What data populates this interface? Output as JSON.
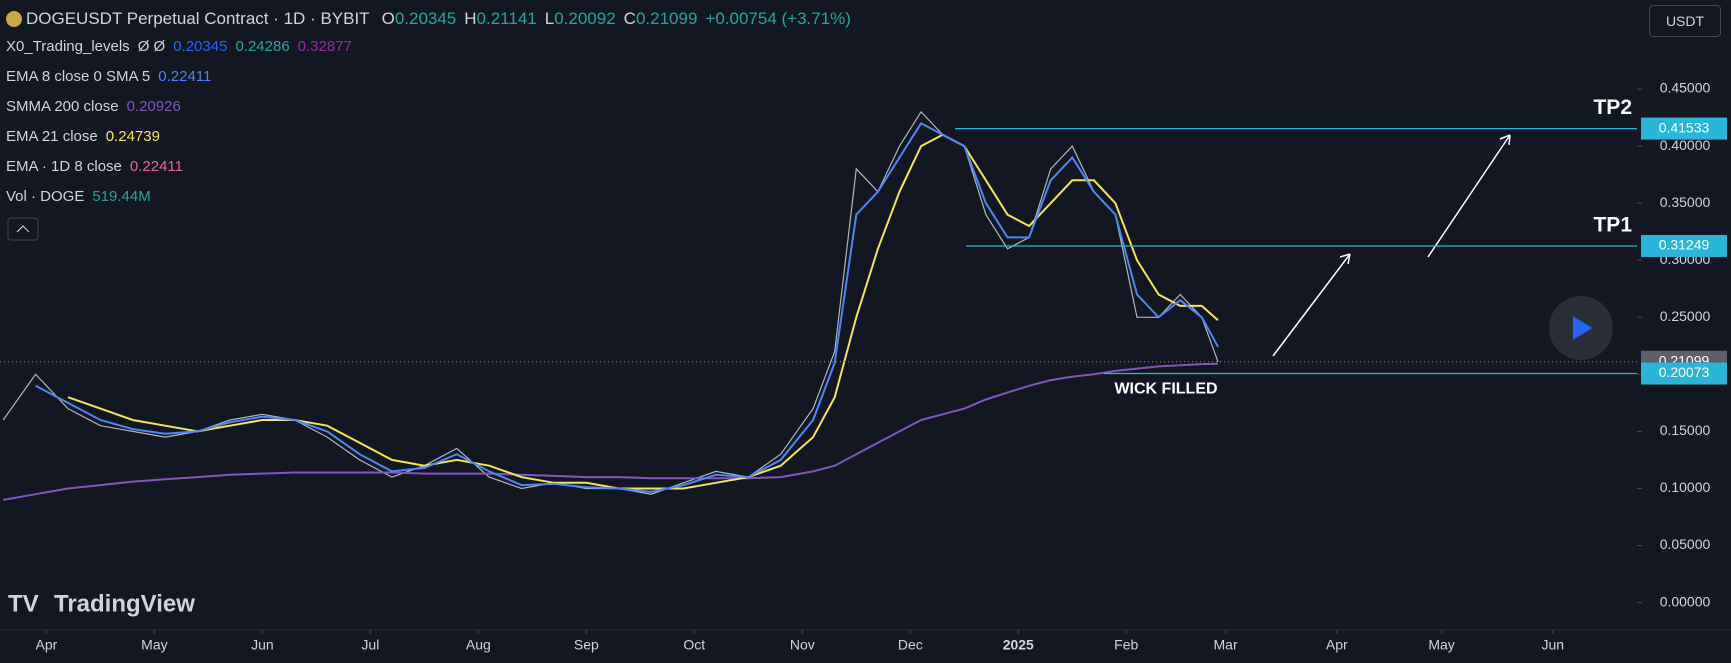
{
  "chart_data": {
    "type": "line",
    "title": "DOGEUSDT Perpetual Contract · 1D · BYBIT",
    "ohlc": [
      {
        "label": "O",
        "value": 0.20345
      },
      {
        "label": "H",
        "value": 0.21141
      },
      {
        "label": "L",
        "value": 0.20092
      },
      {
        "label": "C",
        "value": 0.21099
      }
    ],
    "change": "+0.00754 (+3.71%)",
    "currency": "USDT",
    "brand": "TradingView",
    "indicators": [
      {
        "name": "X0_Trading_levels",
        "extra": "Ø Ø",
        "values": [
          0.20345,
          0.24286,
          0.32877
        ],
        "colors": [
          "#2962ff",
          "#26a69a",
          "#9c27b0"
        ]
      },
      {
        "name": "EMA 8 close 0 SMA 5",
        "values": [
          0.22411
        ],
        "colors": [
          "#4f86f7"
        ]
      },
      {
        "name": "SMMA 200 close",
        "values": [
          0.20926
        ],
        "colors": [
          "#7e57c2"
        ]
      },
      {
        "name": "EMA 21 close",
        "values": [
          0.24739
        ],
        "colors": [
          "#f5e35b"
        ]
      },
      {
        "name": "EMA · 1D 8 close",
        "values": [
          0.22411
        ],
        "colors": [
          "#f06292"
        ]
      },
      {
        "name": "Vol · DOGE",
        "values": [
          "519.44M"
        ],
        "colors": [
          "#26a69a"
        ]
      }
    ],
    "x": [
      -0.4,
      -0.1,
      0.2,
      0.5,
      0.8,
      1.1,
      1.4,
      1.7,
      2,
      2.3,
      2.6,
      2.9,
      3.2,
      3.5,
      3.8,
      4.1,
      4.4,
      4.7,
      5,
      5.3,
      5.6,
      5.9,
      6.2,
      6.5,
      6.8,
      7.1,
      7.3,
      7.5,
      7.7,
      7.9,
      8.1,
      8.3,
      8.5,
      8.7,
      8.9,
      9.1,
      9.3,
      9.5,
      9.7,
      9.9,
      10.1,
      10.3,
      10.5,
      10.7,
      10.85
    ],
    "price": {
      "color": "#b2b5be",
      "values": [
        0.16,
        0.2,
        0.17,
        0.155,
        0.15,
        0.145,
        0.15,
        0.16,
        0.165,
        0.16,
        0.145,
        0.125,
        0.11,
        0.12,
        0.135,
        0.11,
        0.1,
        0.105,
        0.1,
        0.1,
        0.095,
        0.105,
        0.115,
        0.11,
        0.13,
        0.17,
        0.22,
        0.38,
        0.36,
        0.4,
        0.43,
        0.41,
        0.4,
        0.34,
        0.31,
        0.32,
        0.38,
        0.4,
        0.36,
        0.34,
        0.25,
        0.25,
        0.27,
        0.25,
        0.21099
      ]
    },
    "series": [
      {
        "name": "SMMA 200 close",
        "color": "#7e57c2",
        "values": [
          0.09,
          0.095,
          0.1,
          0.103,
          0.106,
          0.108,
          0.11,
          0.112,
          0.113,
          0.114,
          0.114,
          0.114,
          0.114,
          0.113,
          0.113,
          0.113,
          0.112,
          0.111,
          0.11,
          0.11,
          0.109,
          0.109,
          0.109,
          0.109,
          0.11,
          0.115,
          0.12,
          0.13,
          0.14,
          0.15,
          0.16,
          0.165,
          0.17,
          0.178,
          0.184,
          0.19,
          0.195,
          0.198,
          0.2,
          0.203,
          0.205,
          0.207,
          0.208,
          0.209,
          0.20926
        ]
      },
      {
        "name": "EMA 21 close",
        "color": "#f5e35b",
        "values": [
          null,
          null,
          0.18,
          0.17,
          0.16,
          0.155,
          0.15,
          0.155,
          0.16,
          0.16,
          0.155,
          0.14,
          0.125,
          0.12,
          0.125,
          0.12,
          0.11,
          0.105,
          0.105,
          0.1,
          0.1,
          0.1,
          0.105,
          0.11,
          0.12,
          0.145,
          0.18,
          0.25,
          0.31,
          0.36,
          0.4,
          0.41,
          0.4,
          0.37,
          0.34,
          0.33,
          0.35,
          0.37,
          0.37,
          0.35,
          0.3,
          0.27,
          0.26,
          0.26,
          0.24739
        ]
      },
      {
        "name": "EMA 8 close 0 SMA 5",
        "color": "#4f86f7",
        "values": [
          null,
          0.19,
          0.175,
          0.16,
          0.152,
          0.148,
          0.15,
          0.158,
          0.163,
          0.16,
          0.15,
          0.13,
          0.115,
          0.118,
          0.13,
          0.115,
          0.103,
          0.104,
          0.101,
          0.1,
          0.097,
          0.103,
          0.112,
          0.11,
          0.125,
          0.16,
          0.21,
          0.34,
          0.36,
          0.39,
          0.42,
          0.41,
          0.4,
          0.35,
          0.32,
          0.32,
          0.37,
          0.39,
          0.36,
          0.34,
          0.27,
          0.25,
          0.265,
          0.25,
          0.22411
        ]
      }
    ],
    "levels": [
      {
        "value": 0.41533,
        "label": "TP2",
        "color": "#29b6d8"
      },
      {
        "value": 0.31249,
        "label": "TP1",
        "color": "#29b6d8"
      },
      {
        "value": 0.20073,
        "label": "WICK FILLED",
        "color": "#29b6d8"
      }
    ],
    "xlim": [
      -0.43,
      14.73
    ],
    "ylim": [
      -0.024,
      0.528
    ],
    "yticks": [
      {
        "value": 0,
        "label": "0.00000"
      },
      {
        "value": 0.05,
        "label": "0.05000"
      },
      {
        "value": 0.1,
        "label": "0.10000"
      },
      {
        "value": 0.15,
        "label": "0.15000"
      },
      {
        "value": 0.2,
        "label": "0.20000"
      },
      {
        "value": 0.25,
        "label": "0.25000"
      },
      {
        "value": 0.3,
        "label": "0.30000"
      },
      {
        "value": 0.35,
        "label": "0.35000"
      },
      {
        "value": 0.4,
        "label": "0.40000"
      },
      {
        "value": 0.45,
        "label": "0.45000"
      }
    ],
    "xticks": [
      {
        "value": 0,
        "label": "Apr"
      },
      {
        "value": 1,
        "label": "May"
      },
      {
        "value": 2,
        "label": "Jun"
      },
      {
        "value": 3,
        "label": "Jul"
      },
      {
        "value": 4,
        "label": "Aug"
      },
      {
        "value": 5,
        "label": "Sep"
      },
      {
        "value": 6,
        "label": "Oct"
      },
      {
        "value": 7,
        "label": "Nov"
      },
      {
        "value": 8,
        "label": "Dec"
      },
      {
        "value": 9,
        "label": "2025"
      },
      {
        "value": 10,
        "label": "Feb"
      },
      {
        "value": 10.92,
        "label": "Mar"
      },
      {
        "value": 11.95,
        "label": "Apr"
      },
      {
        "value": 12.92,
        "label": "May"
      },
      {
        "value": 13.95,
        "label": "Jun"
      }
    ],
    "grid": false
  }
}
